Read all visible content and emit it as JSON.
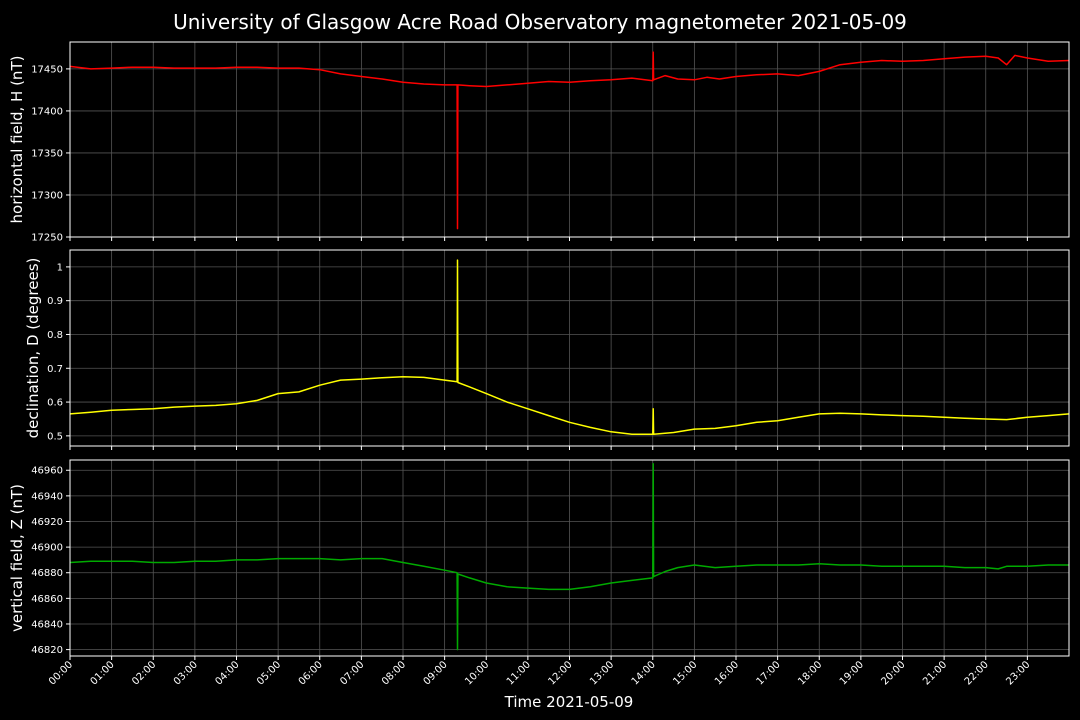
{
  "chart_data": {
    "type": "line",
    "title": "University of Glasgow Acre Road Observatory magnetometer 2021-05-09",
    "xlabel": "Time 2021-05-09",
    "x_ticks": [
      "00:00",
      "01:00",
      "02:00",
      "03:00",
      "04:00",
      "05:00",
      "06:00",
      "07:00",
      "08:00",
      "09:00",
      "10:00",
      "11:00",
      "12:00",
      "13:00",
      "14:00",
      "15:00",
      "16:00",
      "17:00",
      "18:00",
      "19:00",
      "20:00",
      "21:00",
      "22:00",
      "23:00"
    ],
    "x_range_hours": [
      0,
      24
    ],
    "grid": true,
    "panels": [
      {
        "ylabel": "horizontal field, H (nT)",
        "color": "#ff0000",
        "ylim": [
          17250,
          17482
        ],
        "y_ticks": [
          17250,
          17300,
          17350,
          17400,
          17450
        ],
        "series": {
          "x": [
            0,
            0.5,
            1,
            1.5,
            2,
            2.5,
            3,
            3.5,
            4,
            4.5,
            5,
            5.5,
            6,
            6.5,
            7,
            7.5,
            8,
            8.5,
            9,
            9.3,
            9.31,
            9.32,
            9.6,
            10,
            10.5,
            11,
            11.5,
            12,
            12.5,
            13,
            13.5,
            14,
            14.01,
            14.02,
            14.3,
            14.6,
            15,
            15.3,
            15.6,
            16,
            16.5,
            17,
            17.5,
            18,
            18.5,
            19,
            19.5,
            20,
            20.5,
            21,
            21.5,
            22,
            22.3,
            22.5,
            22.7,
            23,
            23.5,
            24
          ],
          "y": [
            17453,
            17450,
            17451,
            17452,
            17452,
            17451,
            17451,
            17451,
            17452,
            17452,
            17451,
            17451,
            17449,
            17444,
            17441,
            17438,
            17434,
            17432,
            17431,
            17431,
            17260,
            17431,
            17430,
            17429,
            17431,
            17433,
            17435,
            17434,
            17436,
            17437,
            17439,
            17436,
            17470,
            17437,
            17442,
            17438,
            17437,
            17440,
            17438,
            17441,
            17443,
            17444,
            17442,
            17447,
            17455,
            17458,
            17460,
            17459,
            17460,
            17462,
            17464,
            17465,
            17463,
            17455,
            17466,
            17463,
            17459,
            17460
          ]
        }
      },
      {
        "ylabel": "declination, D (degrees)",
        "color": "#ffff00",
        "ylim": [
          0.47,
          1.05
        ],
        "y_ticks": [
          0.5,
          0.6,
          0.7,
          0.8,
          0.9,
          1.0
        ],
        "series": {
          "x": [
            0,
            0.5,
            1,
            1.5,
            2,
            2.5,
            3,
            3.5,
            4,
            4.5,
            5,
            5.5,
            6,
            6.5,
            7,
            7.5,
            8,
            8.5,
            9,
            9.3,
            9.31,
            9.32,
            9.6,
            10,
            10.5,
            11,
            11.5,
            12,
            12.5,
            13,
            13.5,
            14,
            14.01,
            14.02,
            14.5,
            15,
            15.5,
            16,
            16.5,
            17,
            17.5,
            18,
            18.5,
            19,
            19.5,
            20,
            20.5,
            21,
            21.5,
            22,
            22.5,
            23,
            23.5,
            24
          ],
          "y": [
            0.565,
            0.57,
            0.576,
            0.578,
            0.58,
            0.585,
            0.588,
            0.59,
            0.595,
            0.605,
            0.625,
            0.63,
            0.65,
            0.665,
            0.668,
            0.672,
            0.675,
            0.673,
            0.665,
            0.66,
            1.02,
            0.658,
            0.645,
            0.625,
            0.6,
            0.58,
            0.56,
            0.54,
            0.525,
            0.512,
            0.505,
            0.505,
            0.58,
            0.505,
            0.51,
            0.52,
            0.522,
            0.53,
            0.54,
            0.545,
            0.555,
            0.565,
            0.567,
            0.565,
            0.562,
            0.56,
            0.558,
            0.555,
            0.552,
            0.55,
            0.548,
            0.555,
            0.56,
            0.565
          ]
        }
      },
      {
        "ylabel": "vertical field, Z (nT)",
        "color": "#00aa00",
        "ylim": [
          46815,
          46968
        ],
        "y_ticks": [
          46820,
          46840,
          46860,
          46880,
          46900,
          46920,
          46940,
          46960
        ],
        "series": {
          "x": [
            0,
            0.5,
            1,
            1.5,
            2,
            2.5,
            3,
            3.5,
            4,
            4.5,
            5,
            5.5,
            6,
            6.5,
            7,
            7.5,
            8,
            8.5,
            9,
            9.3,
            9.31,
            9.32,
            9.6,
            10,
            10.5,
            11,
            11.5,
            12,
            12.5,
            13,
            13.5,
            14,
            14.01,
            14.02,
            14.3,
            14.6,
            15,
            15.5,
            16,
            16.5,
            17,
            17.5,
            18,
            18.5,
            19,
            19.5,
            20,
            20.5,
            21,
            21.5,
            22,
            22.3,
            22.5,
            23,
            23.5,
            24
          ],
          "y": [
            46888,
            46889,
            46889,
            46889,
            46888,
            46888,
            46889,
            46889,
            46890,
            46890,
            46891,
            46891,
            46891,
            46890,
            46891,
            46891,
            46888,
            46885,
            46882,
            46880,
            46820,
            46879,
            46876,
            46872,
            46869,
            46868,
            46867,
            46867,
            46869,
            46872,
            46874,
            46876,
            46965,
            46877,
            46881,
            46884,
            46886,
            46884,
            46885,
            46886,
            46886,
            46886,
            46887,
            46886,
            46886,
            46885,
            46885,
            46885,
            46885,
            46884,
            46884,
            46883,
            46885,
            46885,
            46886,
            46886
          ]
        }
      }
    ]
  }
}
